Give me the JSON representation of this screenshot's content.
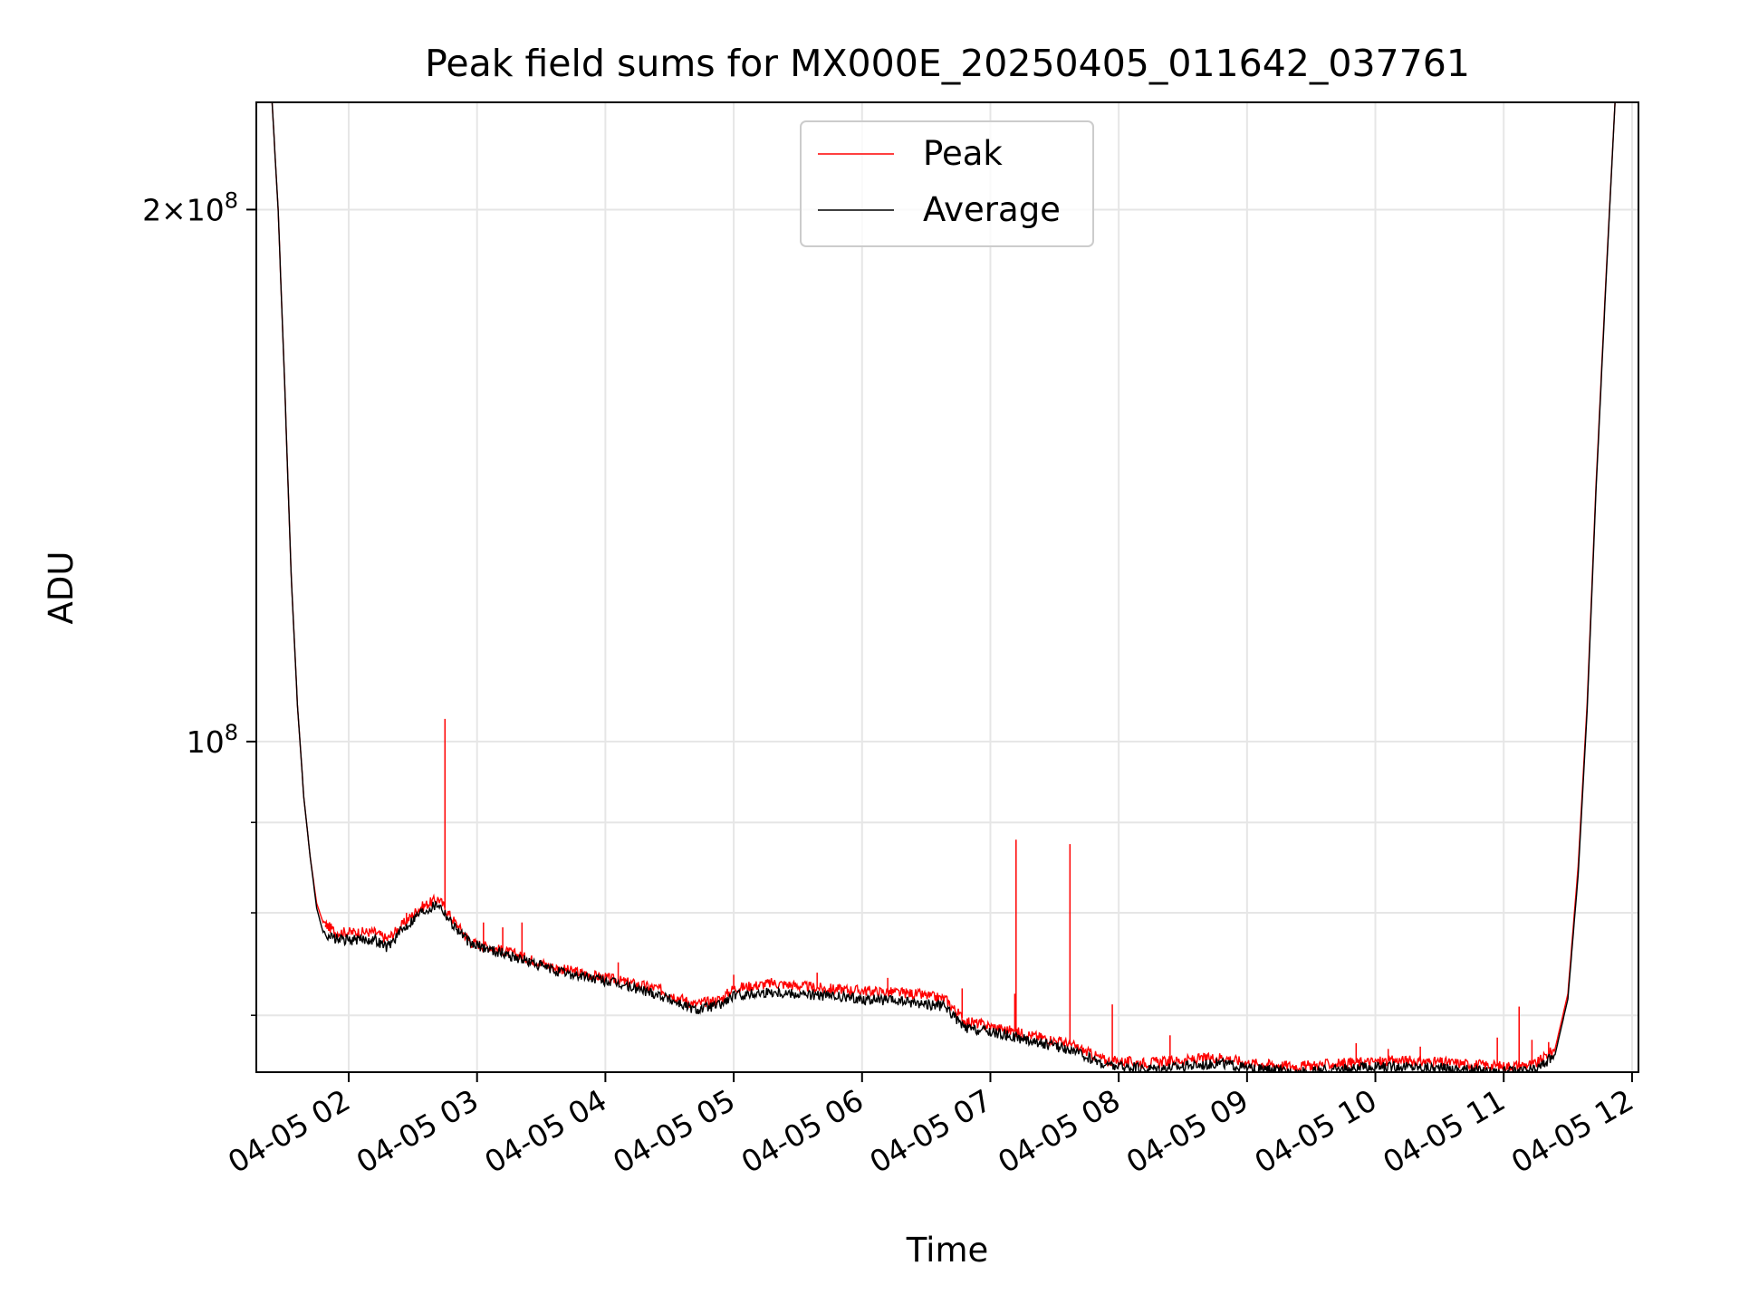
{
  "chart_data": {
    "type": "line",
    "title": "Peak field sums for MX000E_20250405_011642_037761",
    "xlabel": "Time",
    "ylabel": "ADU",
    "yscale": "log",
    "xlim_hours": [
      1.28,
      12.05
    ],
    "ylim": [
      65000000,
      230000000
    ],
    "x_ticks": [
      {
        "hour": 2,
        "label": "04-05 02"
      },
      {
        "hour": 3,
        "label": "04-05 03"
      },
      {
        "hour": 4,
        "label": "04-05 04"
      },
      {
        "hour": 5,
        "label": "04-05 05"
      },
      {
        "hour": 6,
        "label": "04-05 06"
      },
      {
        "hour": 7,
        "label": "04-05 07"
      },
      {
        "hour": 8,
        "label": "04-05 08"
      },
      {
        "hour": 9,
        "label": "04-05 09"
      },
      {
        "hour": 10,
        "label": "04-05 10"
      },
      {
        "hour": 11,
        "label": "04-05 11"
      },
      {
        "hour": 12,
        "label": "04-05 12"
      }
    ],
    "y_major_ticks": [
      {
        "value": 100000000,
        "base": "10",
        "exp": "8",
        "coef": ""
      },
      {
        "value": 200000000,
        "base": "10",
        "exp": "8",
        "coef": "2"
      }
    ],
    "y_minor_ticks": [
      70000000,
      80000000,
      90000000
    ],
    "grid": true,
    "legend_position": "upper-center",
    "series": [
      {
        "name": "Peak",
        "color": "#ff0000",
        "base_points": [
          [
            1.28,
            400000000
          ],
          [
            1.4,
            232000000
          ],
          [
            1.45,
            200000000
          ],
          [
            1.5,
            160000000
          ],
          [
            1.55,
            125000000
          ],
          [
            1.6,
            105000000
          ],
          [
            1.65,
            93000000
          ],
          [
            1.7,
            86000000
          ],
          [
            1.75,
            81000000
          ],
          [
            1.8,
            79000000
          ],
          [
            1.9,
            78000000
          ],
          [
            2.0,
            78000000
          ],
          [
            2.2,
            78000000
          ],
          [
            2.3,
            77300000
          ],
          [
            2.4,
            78500000
          ],
          [
            2.55,
            80500000
          ],
          [
            2.7,
            81500000
          ],
          [
            2.8,
            79500000
          ],
          [
            2.95,
            77000000
          ],
          [
            3.1,
            76500000
          ],
          [
            3.3,
            75800000
          ],
          [
            3.6,
            74500000
          ],
          [
            4.0,
            73500000
          ],
          [
            4.4,
            72500000
          ],
          [
            4.7,
            71000000
          ],
          [
            4.9,
            71500000
          ],
          [
            5.0,
            72500000
          ],
          [
            5.3,
            73000000
          ],
          [
            5.7,
            72500000
          ],
          [
            6.0,
            72300000
          ],
          [
            6.4,
            72000000
          ],
          [
            6.65,
            71500000
          ],
          [
            6.8,
            69500000
          ],
          [
            7.0,
            69000000
          ],
          [
            7.2,
            68500000
          ],
          [
            7.6,
            67500000
          ],
          [
            7.9,
            66000000
          ],
          [
            8.2,
            65800000
          ],
          [
            8.5,
            66000000
          ],
          [
            8.8,
            66300000
          ],
          [
            9.0,
            65800000
          ],
          [
            9.4,
            65500000
          ],
          [
            9.8,
            65800000
          ],
          [
            10.2,
            66000000
          ],
          [
            10.6,
            65800000
          ],
          [
            11.0,
            65500000
          ],
          [
            11.25,
            65700000
          ],
          [
            11.4,
            67000000
          ],
          [
            11.5,
            72000000
          ],
          [
            11.58,
            85000000
          ],
          [
            11.65,
            105000000
          ],
          [
            11.72,
            140000000
          ],
          [
            11.8,
            185000000
          ],
          [
            11.87,
            232000000
          ],
          [
            12.0,
            400000000
          ]
        ],
        "spikes": [
          [
            1.82,
            78500000
          ],
          [
            2.75,
            103000000
          ],
          [
            2.45,
            80000000
          ],
          [
            3.05,
            79000000
          ],
          [
            3.2,
            78500000
          ],
          [
            3.35,
            79000000
          ],
          [
            4.1,
            75000000
          ],
          [
            5.0,
            73800000
          ],
          [
            5.65,
            74000000
          ],
          [
            6.2,
            73500000
          ],
          [
            6.78,
            72500000
          ],
          [
            7.2,
            88000000
          ],
          [
            7.62,
            87500000
          ],
          [
            7.19,
            72000000
          ],
          [
            7.95,
            71000000
          ],
          [
            8.4,
            68200000
          ],
          [
            9.85,
            67500000
          ],
          [
            10.1,
            67000000
          ],
          [
            10.35,
            67200000
          ],
          [
            10.95,
            68000000
          ],
          [
            11.12,
            70800000
          ],
          [
            11.22,
            67800000
          ],
          [
            11.35,
            67600000
          ]
        ]
      },
      {
        "name": "Average",
        "color": "#000000",
        "base_points": [
          [
            1.28,
            400000000
          ],
          [
            1.4,
            232000000
          ],
          [
            1.45,
            200000000
          ],
          [
            1.5,
            160000000
          ],
          [
            1.55,
            125000000
          ],
          [
            1.6,
            105000000
          ],
          [
            1.65,
            93000000
          ],
          [
            1.7,
            86000000
          ],
          [
            1.75,
            80500000
          ],
          [
            1.8,
            78000000
          ],
          [
            1.9,
            77300000
          ],
          [
            2.0,
            77200000
          ],
          [
            2.2,
            77300000
          ],
          [
            2.3,
            76500000
          ],
          [
            2.4,
            78000000
          ],
          [
            2.55,
            80000000
          ],
          [
            2.7,
            81000000
          ],
          [
            2.8,
            79000000
          ],
          [
            2.95,
            76800000
          ],
          [
            3.1,
            76300000
          ],
          [
            3.3,
            75500000
          ],
          [
            3.6,
            74200000
          ],
          [
            4.0,
            73200000
          ],
          [
            4.4,
            72000000
          ],
          [
            4.7,
            70500000
          ],
          [
            4.9,
            71000000
          ],
          [
            5.0,
            71800000
          ],
          [
            5.3,
            72200000
          ],
          [
            5.7,
            71800000
          ],
          [
            6.0,
            71500000
          ],
          [
            6.4,
            71200000
          ],
          [
            6.65,
            70800000
          ],
          [
            6.8,
            68800000
          ],
          [
            7.0,
            68500000
          ],
          [
            7.2,
            68000000
          ],
          [
            7.6,
            67000000
          ],
          [
            7.9,
            65600000
          ],
          [
            8.2,
            65300000
          ],
          [
            8.5,
            65500000
          ],
          [
            8.8,
            65800000
          ],
          [
            9.0,
            65300000
          ],
          [
            9.4,
            65000000
          ],
          [
            9.8,
            65300000
          ],
          [
            10.2,
            65500000
          ],
          [
            10.6,
            65300000
          ],
          [
            11.0,
            65000000
          ],
          [
            11.25,
            65200000
          ],
          [
            11.4,
            66500000
          ],
          [
            11.5,
            71500000
          ],
          [
            11.58,
            84000000
          ],
          [
            11.65,
            104000000
          ],
          [
            11.72,
            139000000
          ],
          [
            11.8,
            184000000
          ],
          [
            11.87,
            232000000
          ],
          [
            12.0,
            400000000
          ]
        ],
        "spikes": []
      }
    ]
  }
}
